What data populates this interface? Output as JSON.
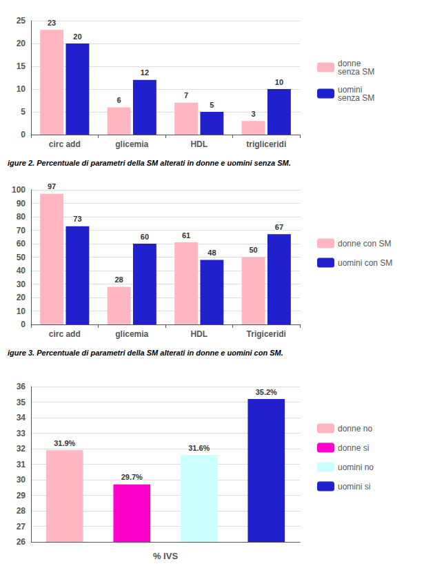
{
  "chart_data": [
    {
      "type": "bar",
      "categories": [
        "circ add",
        "glicemia",
        "HDL",
        "trigliceridi"
      ],
      "series": [
        {
          "name": "donne\nsenza SM",
          "color": "#FFB6C1",
          "values": [
            23,
            6,
            7,
            3
          ]
        },
        {
          "name": "uomini\nsenza SM",
          "color": "#2020CC",
          "values": [
            20,
            12,
            5,
            10
          ]
        }
      ],
      "ylim": [
        0,
        25
      ],
      "yticks": [
        0,
        5,
        10,
        15,
        20,
        25
      ],
      "grid": true,
      "legend": "right",
      "data_labels": true,
      "caption": "igure 2. Percentuale di parametri della SM alterati in donne e uomini senza SM."
    },
    {
      "type": "bar",
      "categories": [
        "circ add",
        "glicemia",
        "HDL",
        "Trigiceridi"
      ],
      "series": [
        {
          "name": "donne con SM",
          "color": "#FFB6C1",
          "values": [
            97,
            28,
            61,
            50
          ]
        },
        {
          "name": "uomini con SM",
          "color": "#2020CC",
          "values": [
            73,
            60,
            48,
            67
          ]
        }
      ],
      "ylim": [
        0,
        100
      ],
      "yticks": [
        0,
        10,
        20,
        30,
        40,
        50,
        60,
        70,
        80,
        90,
        100
      ],
      "grid": true,
      "legend": "right",
      "data_labels": true,
      "caption": "igure 3. Percentuale di parametri della SM alterati in donne e uomini con SM."
    },
    {
      "type": "bar",
      "categories": [
        "donne no",
        "donne si",
        "uomini no",
        "uomini si"
      ],
      "values": [
        31.9,
        29.7,
        31.6,
        35.2
      ],
      "value_labels": [
        "31.9%",
        "29.7%",
        "31.6%",
        "35.2%"
      ],
      "colors": [
        "#FFB6C1",
        "#FF00CC",
        "#CCFFFF",
        "#2020CC"
      ],
      "ylim": [
        26,
        36
      ],
      "yticks": [
        26,
        27,
        28,
        29,
        30,
        31,
        32,
        33,
        34,
        35,
        36
      ],
      "xlabel": "% IVS",
      "grid": true,
      "legend": "right",
      "data_labels": true,
      "tick_labels": "y"
    }
  ]
}
